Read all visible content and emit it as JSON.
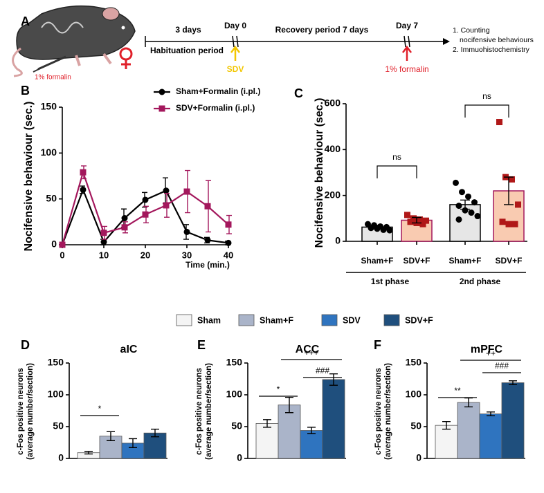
{
  "panel_labels": [
    "A",
    "B",
    "C",
    "D",
    "E",
    "F"
  ],
  "timeline": {
    "mouse_label": "1% formalin",
    "habituation_days": "3 days",
    "day0": "Day 0",
    "recovery": "Recovery period 7 days",
    "day7": "Day 7",
    "habituation": "Habituation period",
    "sdv": "SDV",
    "formalin": "1% formalin",
    "outcomes": [
      "1. Counting",
      "nocifensive behaviours",
      "2. Immuohistochemistry"
    ]
  },
  "bar_legend": {
    "names": [
      "Sham",
      "Sham+F",
      "SDV",
      "SDV+F"
    ],
    "colors": [
      "#f4f4f4",
      "#aab4c9",
      "#2f74bf",
      "#1f4f7d"
    ]
  },
  "chart_data": [
    {
      "type": "line",
      "xlabel": "Time (min.)",
      "ylabel": "Nocifensive behaviour (sec.)",
      "x": [
        0,
        5,
        10,
        15,
        20,
        25,
        30,
        35,
        40
      ],
      "xlim": [
        0,
        40
      ],
      "xticks": [
        0,
        10,
        20,
        30,
        40
      ],
      "ylim": [
        0,
        150
      ],
      "yticks": [
        0,
        50,
        100,
        150
      ],
      "series": [
        {
          "name": "Sham+Formalin (i.pl.)",
          "color": "#000000",
          "marker": "circle",
          "values": [
            0,
            60,
            3,
            29,
            49,
            59,
            14,
            5,
            2
          ],
          "errors": [
            0,
            4,
            3,
            10,
            8,
            14,
            8,
            3,
            2
          ]
        },
        {
          "name": "SDV+Formalin (i.pl.)",
          "color": "#a3175c",
          "marker": "square",
          "values": [
            0,
            79,
            13,
            19,
            33,
            43,
            58,
            42,
            22
          ],
          "errors": [
            0,
            7,
            7,
            6,
            9,
            13,
            23,
            28,
            10
          ]
        }
      ]
    },
    {
      "type": "bar_scatter",
      "ylabel": "Nocifensive behaviour (sec.)",
      "ylim": [
        0,
        600
      ],
      "yticks": [
        0,
        200,
        400,
        600
      ],
      "categories": [
        "Sham+F",
        "SDV+F",
        "Sham+F",
        "SDV+F"
      ],
      "groups": [
        "1st phase",
        "2nd phase"
      ],
      "values": [
        62,
        92,
        160,
        220
      ],
      "errors": [
        8,
        12,
        20,
        60
      ],
      "bar_colors": [
        "#e6e6e6",
        "#f9cbb1",
        "#e6e6e6",
        "#f9cbb1"
      ],
      "edge_colors": [
        "#000000",
        "#a3175c",
        "#000000",
        "#a3175c"
      ],
      "point_colors": [
        "#000000",
        "#b01818",
        "#000000",
        "#b01818"
      ],
      "points": [
        [
          75,
          70,
          65,
          62,
          58,
          55,
          50,
          48
        ],
        [
          115,
          100,
          95,
          90,
          85,
          80,
          75
        ],
        [
          255,
          215,
          195,
          170,
          155,
          135,
          125,
          110,
          95
        ],
        [
          520,
          280,
          270,
          160,
          85,
          75,
          75
        ]
      ],
      "annotations": [
        "ns",
        "ns"
      ]
    },
    {
      "type": "bar",
      "title": "aIC",
      "ylabel": [
        "c-Fos positive neurons",
        "(average number/section)"
      ],
      "ylim": [
        0,
        150
      ],
      "yticks": [
        0,
        50,
        100,
        150
      ],
      "values": [
        9,
        35,
        24,
        40
      ],
      "errors": [
        2,
        7,
        7,
        6
      ],
      "annotations": [
        "*"
      ]
    },
    {
      "type": "bar",
      "title": "ACC",
      "ylabel": [
        "c-Fos positive neurons",
        "(average number/section)"
      ],
      "ylim": [
        0,
        150
      ],
      "yticks": [
        0,
        50,
        100,
        150
      ],
      "values": [
        55,
        84,
        44,
        124
      ],
      "errors": [
        6,
        12,
        5,
        9
      ],
      "annotations": [
        "*",
        "+++",
        "###"
      ]
    },
    {
      "type": "bar",
      "title": "mPFC",
      "ylabel": [
        "c-Fos positive neurons",
        "(average number/section)"
      ],
      "ylim": [
        0,
        150
      ],
      "yticks": [
        0,
        50,
        100,
        150
      ],
      "values": [
        52,
        88,
        70,
        119
      ],
      "errors": [
        6,
        7,
        3,
        3
      ],
      "annotations": [
        "**",
        "++",
        "###"
      ]
    }
  ]
}
